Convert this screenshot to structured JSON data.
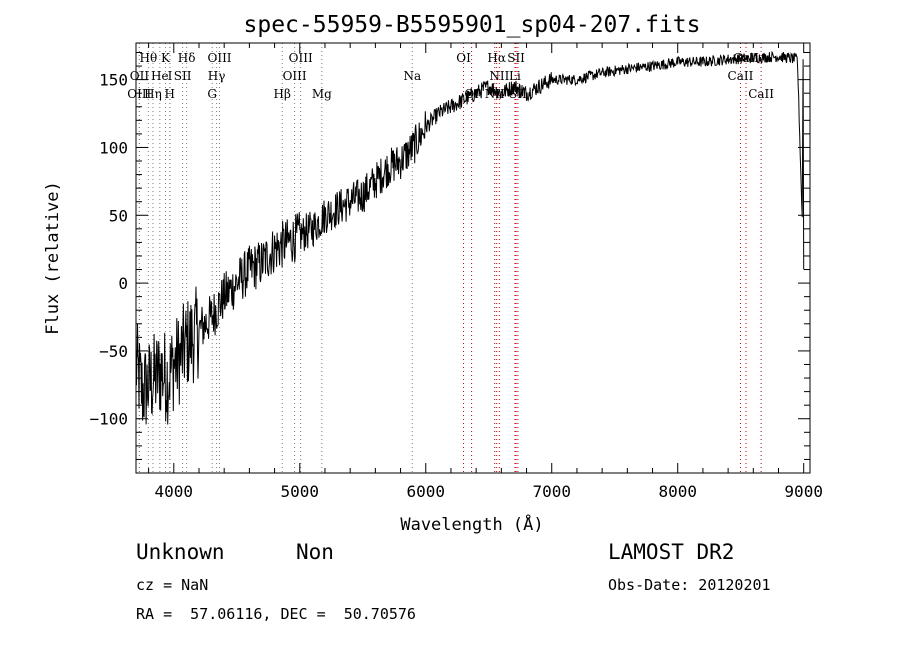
{
  "chart_data": {
    "type": "line",
    "title": "spec-55959-B5595901_sp04-207.fits",
    "xlabel": "Wavelength (Å)",
    "ylabel": "Flux (relative)",
    "xlim": [
      3700,
      9050
    ],
    "ylim": [
      -140,
      177
    ],
    "xticks": [
      4000,
      5000,
      6000,
      7000,
      8000,
      9000
    ],
    "yticks": [
      -100,
      -50,
      0,
      50,
      100,
      150
    ],
    "xticklabels": [
      "4000",
      "5000",
      "6000",
      "7000",
      "8000",
      "9000"
    ],
    "yticklabels": [
      "−100",
      "−50",
      "0",
      "50",
      "100",
      "150"
    ],
    "grid": false,
    "series": [
      {
        "x": [
          3700,
          3750,
          3800,
          3850,
          3900,
          3950,
          4000,
          4050,
          4100,
          4150,
          4200,
          4300,
          4400,
          4500,
          4600,
          4700,
          4800,
          4900,
          5000,
          5100,
          5200,
          5300,
          5400,
          5500,
          5600,
          5700,
          5800,
          5900,
          6000,
          6100,
          6200,
          6300,
          6400,
          6500,
          6600,
          6700,
          6800,
          6900,
          7000,
          7200,
          7400,
          7600,
          7800,
          8000,
          8200,
          8400,
          8600,
          8800,
          8950,
          9000
        ],
        "values": [
          -60,
          -80,
          -75,
          -70,
          -65,
          -70,
          -60,
          -55,
          -45,
          -40,
          -35,
          -25,
          -10,
          0,
          10,
          15,
          25,
          30,
          35,
          40,
          50,
          55,
          60,
          65,
          75,
          85,
          90,
          100,
          115,
          125,
          130,
          135,
          140,
          145,
          140,
          145,
          140,
          145,
          150,
          150,
          155,
          158,
          160,
          163,
          163,
          165,
          166,
          167,
          165,
          10
        ]
      }
    ],
    "lines": [
      {
        "label": "Hθ",
        "x": 3798,
        "row": 1
      },
      {
        "label": "K",
        "x": 3934,
        "row": 1
      },
      {
        "label": "Hδ",
        "x": 4102,
        "row": 1
      },
      {
        "label": "OIII",
        "x": 4363,
        "row": 1
      },
      {
        "label": "OIII",
        "x": 5007,
        "row": 1
      },
      {
        "label": "OI",
        "x": 6300,
        "row": 1
      },
      {
        "label": "Hα",
        "x": 6563,
        "row": 1
      },
      {
        "label": "SII",
        "x": 6717,
        "row": 1
      },
      {
        "label": "CaII",
        "x": 8542,
        "row": 1
      },
      {
        "label": "OII",
        "x": 3727,
        "row": 2
      },
      {
        "label": "He",
        "x": 3889,
        "row": 2
      },
      {
        "label": "I",
        "x": 3970,
        "row": 2
      },
      {
        "label": "SII",
        "x": 4070,
        "row": 2
      },
      {
        "label": "Hγ",
        "x": 4340,
        "row": 2
      },
      {
        "label": "OIII",
        "x": 4959,
        "row": 2
      },
      {
        "label": "Na",
        "x": 5893,
        "row": 2
      },
      {
        "label": "NII",
        "x": 6584,
        "row": 2
      },
      {
        "label": "Li",
        "x": 6708,
        "row": 2
      },
      {
        "label": "CaII",
        "x": 8498,
        "row": 2
      },
      {
        "label": "OIII",
        "x": 3726,
        "row": 3
      },
      {
        "label": "Hη",
        "x": 3835,
        "row": 3
      },
      {
        "label": "H",
        "x": 3968,
        "row": 3
      },
      {
        "label": "G",
        "x": 4305,
        "row": 3
      },
      {
        "label": "Hβ",
        "x": 4861,
        "row": 3
      },
      {
        "label": "Mg",
        "x": 5175,
        "row": 3
      },
      {
        "label": "OI",
        "x": 6364,
        "row": 3
      },
      {
        "label": "NII",
        "x": 6548,
        "row": 3
      },
      {
        "label": "SII",
        "x": 6731,
        "row": 3
      },
      {
        "label": "CaII",
        "x": 8662,
        "row": 3
      }
    ]
  },
  "info": {
    "classification": "Unknown",
    "subclass": "Non",
    "survey": "LAMOST DR2",
    "cz": "cz = NaN",
    "obs_date": "Obs-Date: 20120201",
    "coords": "RA =  57.06116, DEC =  50.70576"
  },
  "colors": {
    "line_marker": "#c00000",
    "neutral_marker": "#808080",
    "spectrum": "#000000"
  }
}
